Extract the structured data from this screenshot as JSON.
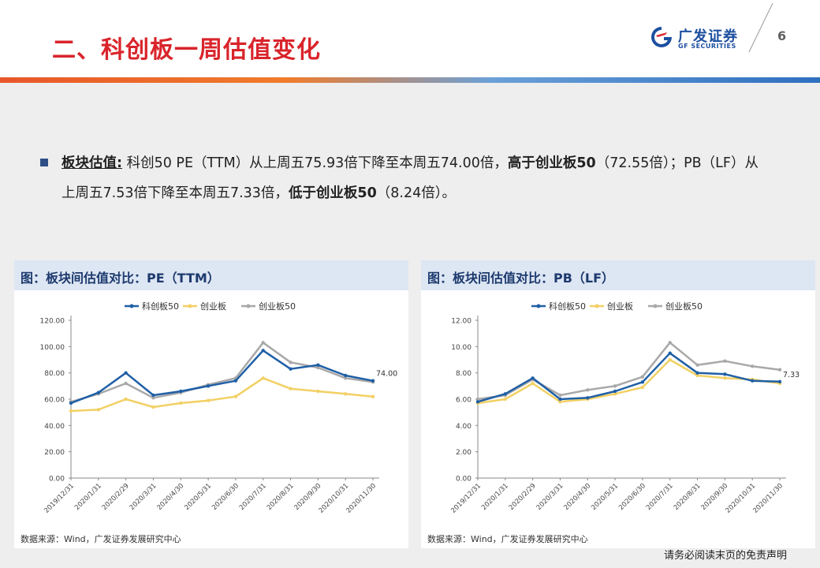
{
  "header": {
    "title": "二、科创板一周估值变化",
    "logo_cn": "广发证券",
    "logo_en": "GF SECURITIES",
    "page_number": "6"
  },
  "bullet": {
    "label": "板块估值:",
    "seg1": " 科创50 PE（TTM）从上周五75.93倍下降至本周五74.00倍，",
    "bold1": "高于创业板50",
    "seg2": "（72.55倍）；PB（LF）从上周五7.53倍下降至本周五7.33倍，",
    "bold2": "低于创业板50",
    "seg3": "（8.24倍）。"
  },
  "footer": {
    "disclaimer": "请务必阅读末页的免责声明"
  },
  "colors": {
    "title_red": "#d9242b",
    "brand_blue": "#1d4fa0",
    "series_kc50": "#1f5fa6",
    "series_cyb": "#f2d064",
    "series_cyb50": "#a8a8a8"
  },
  "chart_data": [
    {
      "type": "line",
      "panel_title": "图：板块间估值对比：PE（TTM）",
      "source": "数据来源：Wind，广发证券发展研究中心",
      "x": [
        "2019/12/31",
        "2020/1/31",
        "2020/2/29",
        "2020/3/31",
        "2020/4/30",
        "2020/5/31",
        "2020/6/30",
        "2020/7/31",
        "2020/8/31",
        "2020/9/30",
        "2020/10/31",
        "2020/11/30"
      ],
      "x_tick_labels": [
        "2019/12/31",
        "2020/1/31",
        "2020/2/29",
        "2020/3/31",
        "2020/4/30",
        "2020/5/31",
        "2020/6/30",
        "2020/7/31",
        "2020/8/31",
        "2020/9/30",
        "2020/10/31",
        "2020/11/30"
      ],
      "y_tick_labels": [
        "0.00",
        "20.00",
        "40.00",
        "60.00",
        "80.00",
        "100.00",
        "120.00"
      ],
      "ylim": [
        0,
        120
      ],
      "series": [
        {
          "name": "科创板50",
          "color": "#1f5fa6",
          "values": [
            57,
            65,
            80,
            63,
            66,
            70,
            74,
            97,
            83,
            86,
            78,
            74
          ]
        },
        {
          "name": "创业板",
          "color": "#f2d064",
          "values": [
            51,
            52,
            60,
            54,
            57,
            59,
            62,
            76,
            68,
            66,
            64,
            62
          ]
        },
        {
          "name": "创业板50",
          "color": "#a8a8a8",
          "values": [
            58,
            64,
            72,
            61,
            65,
            71,
            76,
            103,
            88,
            84,
            76,
            73
          ]
        }
      ],
      "end_label": "74.00",
      "legend_position": "top-center",
      "grid": false
    },
    {
      "type": "line",
      "panel_title": "图：板块间估值对比：PB（LF）",
      "source": "数据来源：Wind，广发证券发展研究中心",
      "x": [
        "2019/12/31",
        "2020/1/31",
        "2020/2/29",
        "2020/3/31",
        "2020/4/30",
        "2020/5/31",
        "2020/6/30",
        "2020/7/31",
        "2020/8/31",
        "2020/9/30",
        "2020/10/31",
        "2020/11/30"
      ],
      "x_tick_labels": [
        "2019/12/31",
        "2020/1/31",
        "2020/2/29",
        "2020/3/31",
        "2020/4/30",
        "2020/5/31",
        "2020/6/30",
        "2020/7/31",
        "2020/8/31",
        "2020/9/30",
        "2020/10/31",
        "2020/11/30"
      ],
      "y_tick_labels": [
        "0.00",
        "2.00",
        "4.00",
        "6.00",
        "8.00",
        "10.00",
        "12.00"
      ],
      "ylim": [
        0,
        12
      ],
      "series": [
        {
          "name": "科创板50",
          "color": "#1f5fa6",
          "values": [
            5.8,
            6.4,
            7.6,
            6.0,
            6.1,
            6.6,
            7.3,
            9.5,
            8.0,
            7.9,
            7.4,
            7.33
          ]
        },
        {
          "name": "创业板",
          "color": "#f2d064",
          "values": [
            5.7,
            6.0,
            7.2,
            5.8,
            6.0,
            6.4,
            6.9,
            9.0,
            7.8,
            7.6,
            7.5,
            7.2
          ]
        },
        {
          "name": "创业板50",
          "color": "#a8a8a8",
          "values": [
            6.0,
            6.3,
            7.5,
            6.3,
            6.7,
            7.0,
            7.7,
            10.3,
            8.6,
            8.9,
            8.5,
            8.24
          ]
        }
      ],
      "end_label": "7.33",
      "legend_position": "top-center",
      "grid": false
    }
  ]
}
